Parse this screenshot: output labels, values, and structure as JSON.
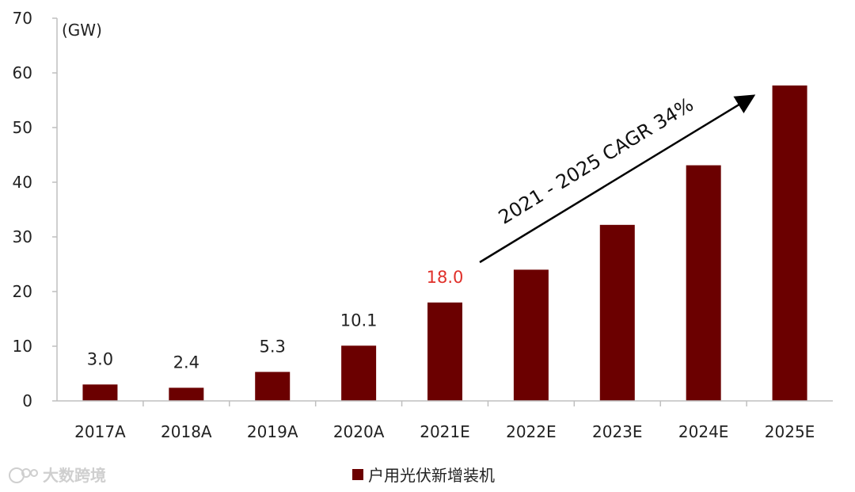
{
  "chart_data": {
    "type": "bar",
    "unit_label": "(GW)",
    "categories": [
      "2017A",
      "2018A",
      "2019A",
      "2020A",
      "2021E",
      "2022E",
      "2023E",
      "2024E",
      "2025E"
    ],
    "series": [
      {
        "name": "户用光伏新增装机",
        "values": [
          3.0,
          2.4,
          5.3,
          10.1,
          18.0,
          24.0,
          32.2,
          43.1,
          57.7
        ],
        "color": "#6b0000"
      }
    ],
    "data_labels": [
      "3.0",
      "2.4",
      "5.3",
      "10.1",
      "18.0",
      "",
      "",
      "",
      ""
    ],
    "highlight_label_color": "#e0302a",
    "highlight_index": 4,
    "yticks": [
      "0",
      "10",
      "20",
      "30",
      "40",
      "50",
      "60",
      "70"
    ],
    "ylim": [
      0,
      70
    ],
    "grid": false,
    "legend_position": "bottom",
    "annotation": "2021 - 2025 CAGR 34%"
  },
  "watermark": "大数跨境"
}
